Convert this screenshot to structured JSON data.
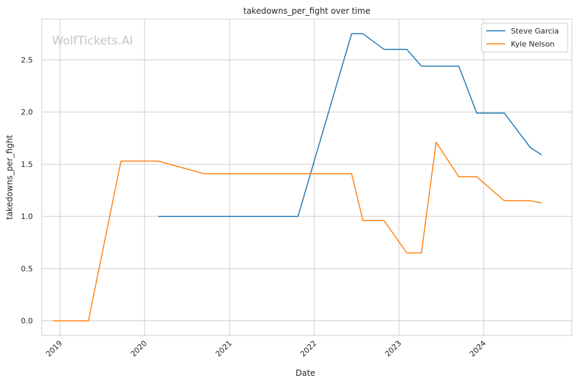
{
  "chart_data": {
    "type": "line",
    "title": "takedowns_per_fight over time",
    "xlabel": "Date",
    "ylabel": "takedowns_per_fight",
    "watermark": "WolfTickets.AI",
    "x_ticks": [
      "2019",
      "2020",
      "2021",
      "2022",
      "2023",
      "2024"
    ],
    "y_ticks": [
      "0.0",
      "0.5",
      "1.0",
      "1.5",
      "2.0",
      "2.5"
    ],
    "xlim": [
      "2018-10-15",
      "2025-01-15"
    ],
    "ylim": [
      -0.14,
      2.89
    ],
    "grid": true,
    "legend_position": "top-right",
    "series": [
      {
        "name": "Steve Garcia",
        "color": "#1f77b4",
        "x": [
          "2020-02-29",
          "2021-10-23",
          "2022-06-11",
          "2022-07-30",
          "2022-10-29",
          "2023-02-04",
          "2023-04-08",
          "2023-09-16",
          "2023-12-02",
          "2024-03-30",
          "2024-07-20",
          "2024-09-07"
        ],
        "y": [
          1.0,
          1.0,
          2.75,
          2.75,
          2.6,
          2.6,
          2.44,
          2.44,
          1.99,
          1.99,
          1.66,
          1.59
        ]
      },
      {
        "name": "Kyle Nelson",
        "color": "#ff7f0e",
        "x": [
          "2018-12-01",
          "2019-05-04",
          "2019-09-21",
          "2020-02-29",
          "2020-09-12",
          "2022-06-11",
          "2022-07-30",
          "2022-10-29",
          "2023-02-04",
          "2023-04-08",
          "2023-06-10",
          "2023-09-16",
          "2023-12-02",
          "2024-03-30",
          "2024-07-20",
          "2024-09-07"
        ],
        "y": [
          0.0,
          0.0,
          1.53,
          1.53,
          1.41,
          1.41,
          0.96,
          0.96,
          0.65,
          0.65,
          1.71,
          1.38,
          1.38,
          1.15,
          1.15,
          1.13
        ]
      }
    ]
  }
}
